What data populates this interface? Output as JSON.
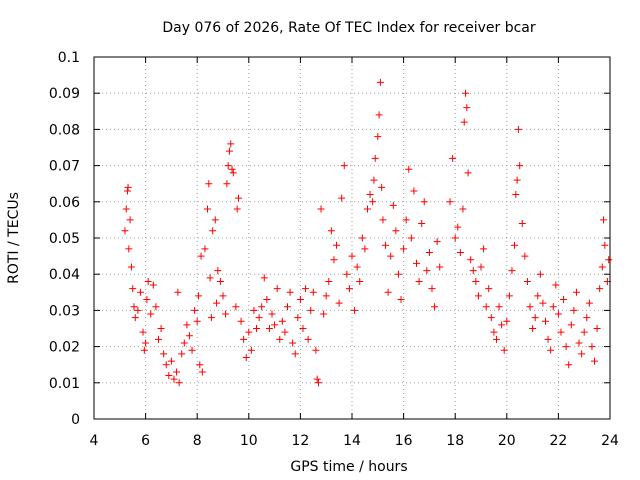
{
  "chart_data": {
    "type": "scatter",
    "title": "Day 076 of 2026, Rate Of TEC Index for receiver bcar",
    "xlabel": "GPS time / hours",
    "ylabel": "ROTI / TECUs",
    "xlim": [
      4,
      24
    ],
    "ylim": [
      0,
      0.1
    ],
    "x_ticks": [
      "4",
      "6",
      "8",
      "10",
      "12",
      "14",
      "16",
      "18",
      "20",
      "22",
      "24"
    ],
    "y_ticks": [
      "0",
      "0.01",
      "0.02",
      "0.03",
      "0.04",
      "0.05",
      "0.06",
      "0.07",
      "0.08",
      "0.09",
      "0.1"
    ],
    "grid": true,
    "marker": "+",
    "marker_color": "#ff0000",
    "points": [
      [
        5.2,
        0.052
      ],
      [
        5.25,
        0.058
      ],
      [
        5.3,
        0.063
      ],
      [
        5.32,
        0.064
      ],
      [
        5.35,
        0.047
      ],
      [
        5.4,
        0.055
      ],
      [
        5.45,
        0.042
      ],
      [
        5.5,
        0.036
      ],
      [
        5.55,
        0.031
      ],
      [
        5.6,
        0.028
      ],
      [
        5.7,
        0.03
      ],
      [
        5.8,
        0.035
      ],
      [
        5.9,
        0.024
      ],
      [
        5.95,
        0.019
      ],
      [
        6.0,
        0.021
      ],
      [
        6.05,
        0.033
      ],
      [
        6.1,
        0.038
      ],
      [
        6.2,
        0.029
      ],
      [
        6.3,
        0.037
      ],
      [
        6.4,
        0.031
      ],
      [
        6.5,
        0.022
      ],
      [
        6.6,
        0.025
      ],
      [
        6.7,
        0.018
      ],
      [
        6.8,
        0.015
      ],
      [
        6.9,
        0.012
      ],
      [
        7.0,
        0.016
      ],
      [
        7.1,
        0.011
      ],
      [
        7.2,
        0.013
      ],
      [
        7.25,
        0.035
      ],
      [
        7.3,
        0.01
      ],
      [
        7.4,
        0.018
      ],
      [
        7.5,
        0.021
      ],
      [
        7.6,
        0.026
      ],
      [
        7.7,
        0.023
      ],
      [
        7.8,
        0.019
      ],
      [
        7.9,
        0.03
      ],
      [
        8.0,
        0.027
      ],
      [
        8.05,
        0.034
      ],
      [
        8.1,
        0.015
      ],
      [
        8.15,
        0.045
      ],
      [
        8.2,
        0.013
      ],
      [
        8.3,
        0.047
      ],
      [
        8.4,
        0.058
      ],
      [
        8.45,
        0.065
      ],
      [
        8.5,
        0.039
      ],
      [
        8.55,
        0.028
      ],
      [
        8.6,
        0.052
      ],
      [
        8.7,
        0.055
      ],
      [
        8.75,
        0.032
      ],
      [
        8.8,
        0.041
      ],
      [
        8.9,
        0.038
      ],
      [
        9.0,
        0.034
      ],
      [
        9.1,
        0.029
      ],
      [
        9.15,
        0.065
      ],
      [
        9.2,
        0.07
      ],
      [
        9.25,
        0.074
      ],
      [
        9.3,
        0.076
      ],
      [
        9.35,
        0.069
      ],
      [
        9.4,
        0.068
      ],
      [
        9.5,
        0.031
      ],
      [
        9.55,
        0.058
      ],
      [
        9.6,
        0.061
      ],
      [
        9.7,
        0.027
      ],
      [
        9.8,
        0.022
      ],
      [
        9.9,
        0.017
      ],
      [
        10.0,
        0.024
      ],
      [
        10.1,
        0.019
      ],
      [
        10.2,
        0.03
      ],
      [
        10.3,
        0.025
      ],
      [
        10.4,
        0.028
      ],
      [
        10.5,
        0.031
      ],
      [
        10.6,
        0.039
      ],
      [
        10.7,
        0.033
      ],
      [
        10.8,
        0.025
      ],
      [
        10.9,
        0.029
      ],
      [
        11.0,
        0.026
      ],
      [
        11.1,
        0.036
      ],
      [
        11.2,
        0.022
      ],
      [
        11.3,
        0.027
      ],
      [
        11.4,
        0.024
      ],
      [
        11.5,
        0.031
      ],
      [
        11.6,
        0.035
      ],
      [
        11.7,
        0.021
      ],
      [
        11.8,
        0.018
      ],
      [
        11.9,
        0.028
      ],
      [
        12.0,
        0.033
      ],
      [
        12.1,
        0.025
      ],
      [
        12.2,
        0.036
      ],
      [
        12.3,
        0.022
      ],
      [
        12.4,
        0.03
      ],
      [
        12.5,
        0.035
      ],
      [
        12.6,
        0.019
      ],
      [
        12.65,
        0.011
      ],
      [
        12.7,
        0.01
      ],
      [
        12.8,
        0.058
      ],
      [
        12.9,
        0.029
      ],
      [
        13.0,
        0.034
      ],
      [
        13.1,
        0.038
      ],
      [
        13.2,
        0.052
      ],
      [
        13.3,
        0.044
      ],
      [
        13.4,
        0.048
      ],
      [
        13.5,
        0.032
      ],
      [
        13.6,
        0.061
      ],
      [
        13.7,
        0.07
      ],
      [
        13.8,
        0.04
      ],
      [
        13.9,
        0.036
      ],
      [
        14.0,
        0.045
      ],
      [
        14.1,
        0.03
      ],
      [
        14.2,
        0.042
      ],
      [
        14.3,
        0.038
      ],
      [
        14.4,
        0.05
      ],
      [
        14.5,
        0.047
      ],
      [
        14.6,
        0.058
      ],
      [
        14.7,
        0.062
      ],
      [
        14.8,
        0.06
      ],
      [
        14.85,
        0.066
      ],
      [
        14.9,
        0.072
      ],
      [
        15.0,
        0.078
      ],
      [
        15.05,
        0.084
      ],
      [
        15.1,
        0.093
      ],
      [
        15.15,
        0.064
      ],
      [
        15.2,
        0.055
      ],
      [
        15.3,
        0.048
      ],
      [
        15.4,
        0.035
      ],
      [
        15.5,
        0.045
      ],
      [
        15.6,
        0.059
      ],
      [
        15.7,
        0.052
      ],
      [
        15.8,
        0.04
      ],
      [
        15.9,
        0.033
      ],
      [
        16.0,
        0.047
      ],
      [
        16.1,
        0.055
      ],
      [
        16.2,
        0.069
      ],
      [
        16.3,
        0.05
      ],
      [
        16.4,
        0.063
      ],
      [
        16.5,
        0.043
      ],
      [
        16.6,
        0.038
      ],
      [
        16.7,
        0.054
      ],
      [
        16.8,
        0.06
      ],
      [
        16.9,
        0.041
      ],
      [
        17.0,
        0.046
      ],
      [
        17.1,
        0.036
      ],
      [
        17.2,
        0.031
      ],
      [
        17.3,
        0.049
      ],
      [
        17.4,
        0.042
      ],
      [
        17.8,
        0.06
      ],
      [
        17.9,
        0.072
      ],
      [
        18.0,
        0.05
      ],
      [
        18.1,
        0.053
      ],
      [
        18.2,
        0.046
      ],
      [
        18.3,
        0.058
      ],
      [
        18.35,
        0.082
      ],
      [
        18.4,
        0.09
      ],
      [
        18.45,
        0.086
      ],
      [
        18.5,
        0.068
      ],
      [
        18.6,
        0.044
      ],
      [
        18.7,
        0.041
      ],
      [
        18.8,
        0.038
      ],
      [
        18.9,
        0.034
      ],
      [
        19.0,
        0.042
      ],
      [
        19.1,
        0.047
      ],
      [
        19.2,
        0.031
      ],
      [
        19.3,
        0.036
      ],
      [
        19.4,
        0.028
      ],
      [
        19.5,
        0.024
      ],
      [
        19.6,
        0.022
      ],
      [
        19.7,
        0.031
      ],
      [
        19.8,
        0.026
      ],
      [
        19.9,
        0.019
      ],
      [
        20.0,
        0.027
      ],
      [
        20.1,
        0.034
      ],
      [
        20.2,
        0.041
      ],
      [
        20.3,
        0.048
      ],
      [
        20.35,
        0.062
      ],
      [
        20.4,
        0.066
      ],
      [
        20.45,
        0.08
      ],
      [
        20.5,
        0.07
      ],
      [
        20.6,
        0.054
      ],
      [
        20.7,
        0.045
      ],
      [
        20.8,
        0.038
      ],
      [
        20.9,
        0.031
      ],
      [
        21.0,
        0.025
      ],
      [
        21.1,
        0.028
      ],
      [
        21.2,
        0.034
      ],
      [
        21.3,
        0.04
      ],
      [
        21.4,
        0.032
      ],
      [
        21.5,
        0.027
      ],
      [
        21.6,
        0.022
      ],
      [
        21.7,
        0.019
      ],
      [
        21.8,
        0.031
      ],
      [
        21.9,
        0.037
      ],
      [
        22.0,
        0.029
      ],
      [
        22.1,
        0.024
      ],
      [
        22.2,
        0.033
      ],
      [
        22.3,
        0.02
      ],
      [
        22.4,
        0.015
      ],
      [
        22.5,
        0.026
      ],
      [
        22.6,
        0.03
      ],
      [
        22.7,
        0.035
      ],
      [
        22.8,
        0.021
      ],
      [
        22.9,
        0.018
      ],
      [
        23.0,
        0.024
      ],
      [
        23.1,
        0.028
      ],
      [
        23.2,
        0.032
      ],
      [
        23.3,
        0.02
      ],
      [
        23.4,
        0.016
      ],
      [
        23.5,
        0.025
      ],
      [
        23.6,
        0.036
      ],
      [
        23.7,
        0.042
      ],
      [
        23.75,
        0.055
      ],
      [
        23.8,
        0.048
      ],
      [
        23.9,
        0.038
      ],
      [
        23.95,
        0.044
      ]
    ]
  }
}
